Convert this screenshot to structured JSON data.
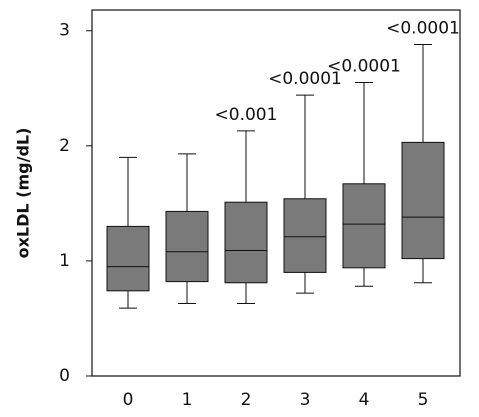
{
  "chart_data": {
    "type": "box",
    "y_label": "oxLDL (mg/dL)",
    "categories": [
      "0",
      "1",
      "2",
      "3",
      "4",
      "5"
    ],
    "min": [
      0.59,
      0.63,
      0.63,
      0.72,
      0.78,
      0.81
    ],
    "q1": [
      0.74,
      0.82,
      0.81,
      0.9,
      0.94,
      1.02
    ],
    "median": [
      0.95,
      1.08,
      1.09,
      1.21,
      1.32,
      1.38
    ],
    "q3": [
      1.3,
      1.43,
      1.51,
      1.54,
      1.67,
      2.03
    ],
    "max": [
      1.9,
      1.93,
      2.13,
      2.44,
      2.55,
      2.88
    ],
    "annotations": [
      null,
      null,
      "<0.001",
      "<0.0001",
      "<0.0001",
      "<0.0001"
    ],
    "color": "#7a7a7a",
    "ylim": [
      0,
      3.18
    ],
    "yticks": [
      0,
      1,
      2,
      3
    ]
  }
}
